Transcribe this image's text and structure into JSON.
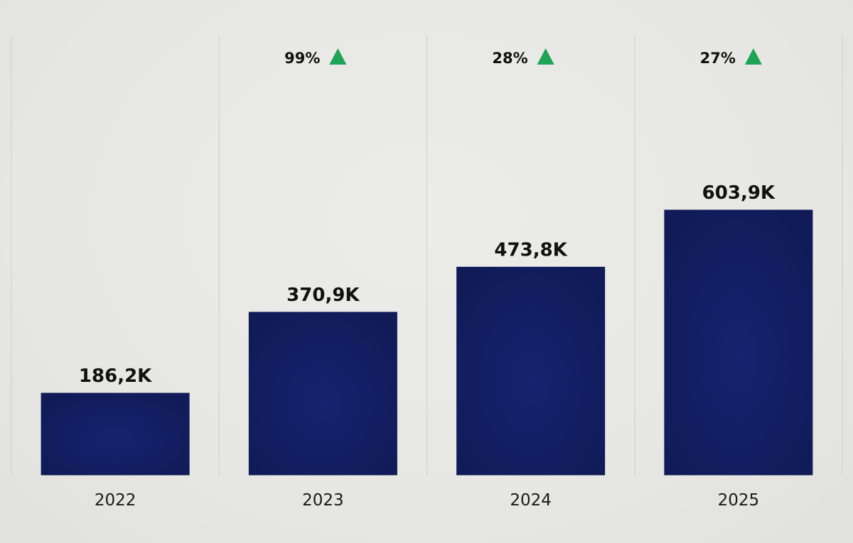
{
  "chart_data": {
    "type": "bar",
    "categories": [
      "2022",
      "2023",
      "2024",
      "2025"
    ],
    "values": [
      186200,
      370900,
      473800,
      603900
    ],
    "value_labels": [
      "186,2K",
      "370,9K",
      "473,8K",
      "603,9K"
    ],
    "growth_labels": [
      "",
      "99%",
      "28%",
      "27%"
    ],
    "growth_direction": [
      "",
      "up",
      "up",
      "up"
    ],
    "ylim": [
      0,
      603900
    ],
    "grid": false,
    "legend": "none",
    "colors": {
      "bar": "#13206a",
      "bar_edge": "#0f1a55",
      "growth_up": "#1fa355",
      "separator": "#d3d3d0"
    }
  }
}
